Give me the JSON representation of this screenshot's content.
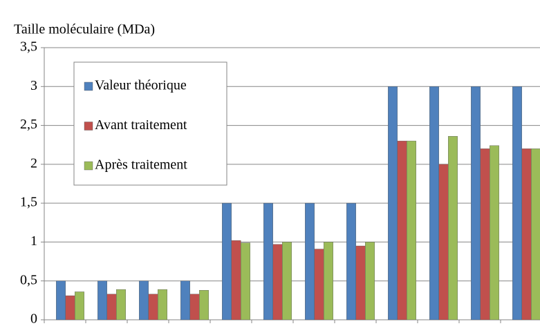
{
  "chart_data": {
    "type": "bar",
    "title": "Taille moléculaire (MDa)",
    "categories": [
      null,
      null,
      null,
      null,
      null,
      null,
      null,
      null,
      null,
      null,
      null,
      null
    ],
    "series": [
      {
        "name": "Valeur théorique",
        "color": "#4f81bd",
        "values": [
          0.5,
          0.5,
          0.5,
          0.5,
          1.5,
          1.5,
          1.5,
          1.5,
          3,
          3,
          3,
          3
        ]
      },
      {
        "name": "Avant traitement",
        "color": "#c0504d",
        "values": [
          0.31,
          0.33,
          0.33,
          0.33,
          1.02,
          0.97,
          0.91,
          0.95,
          2.3,
          2.0,
          2.2,
          2.2
        ]
      },
      {
        "name": "Après traitement",
        "color": "#9bbb59",
        "values": [
          0.36,
          0.39,
          0.39,
          0.38,
          0.99,
          1.0,
          1.0,
          1.0,
          2.3,
          2.36,
          2.24,
          2.2
        ]
      }
    ],
    "ylim": [
      0,
      3.5
    ],
    "yticks": [
      0,
      {
        "value": 0.5,
        "label": "0,5"
      },
      1,
      {
        "value": 1.5,
        "label": "1,5"
      },
      2,
      {
        "value": 2.5,
        "label": "2,5"
      },
      3,
      {
        "value": 3.5,
        "label": "3,5"
      }
    ],
    "grid": true,
    "legend": "upper left"
  }
}
